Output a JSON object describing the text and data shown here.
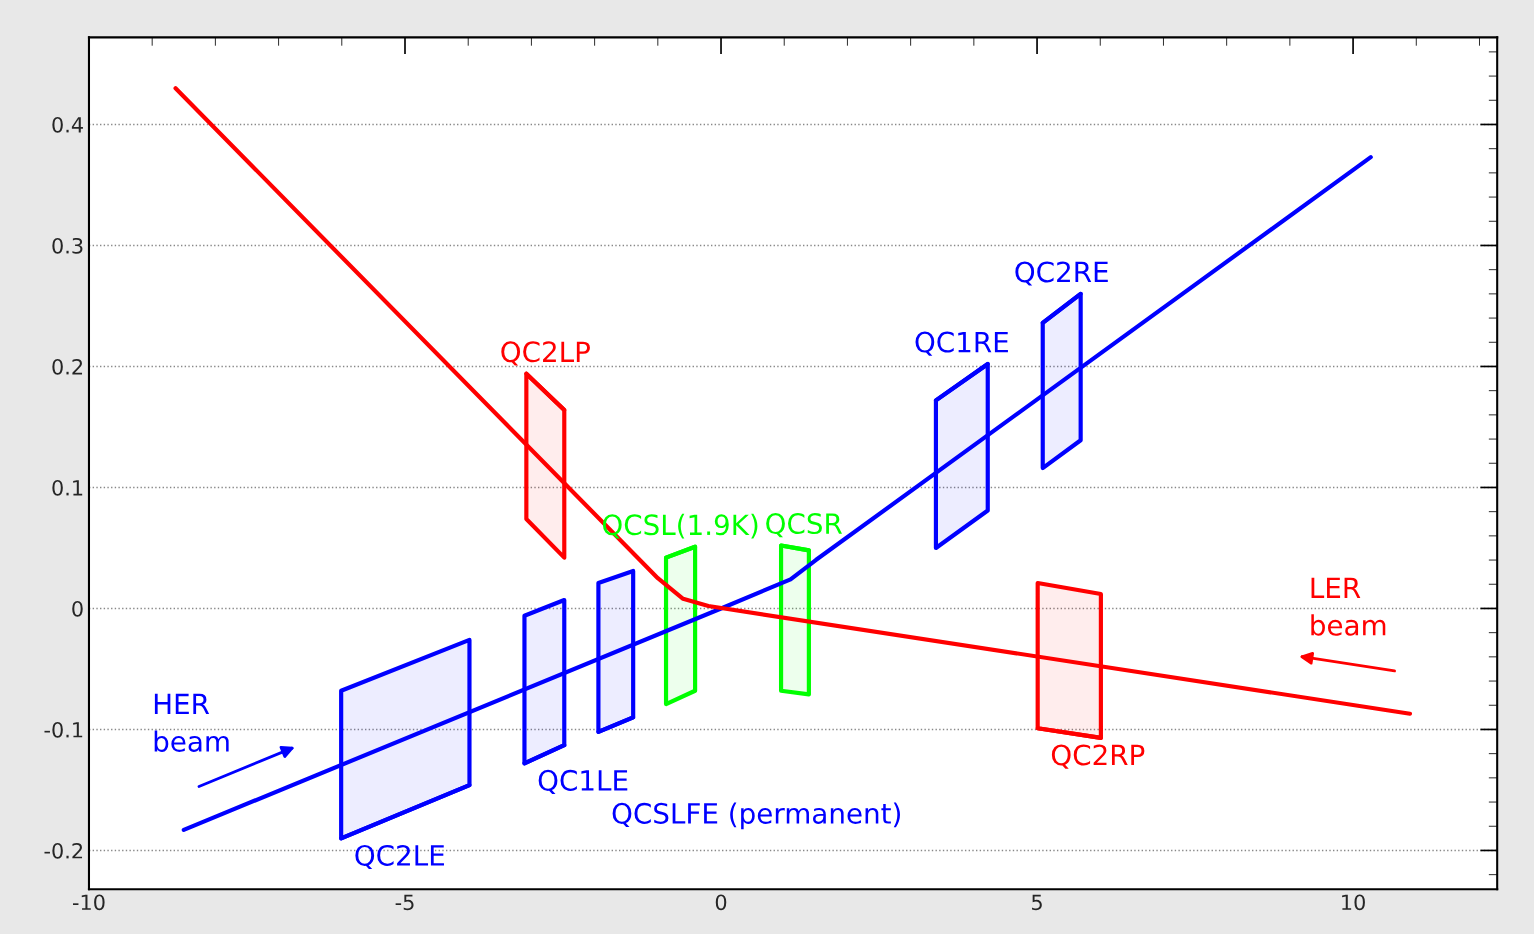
{
  "chart_data": {
    "type": "line",
    "xlim": [
      -10,
      12.28
    ],
    "ylim": [
      -0.232,
      0.472
    ],
    "xticks": [
      -10,
      -5,
      0,
      5,
      10
    ],
    "yticks": [
      -0.2,
      -0.1,
      0,
      0.1,
      0.2,
      0.3,
      0.4
    ],
    "grid": "y",
    "legend": false,
    "marker": "none",
    "line_style": "solid",
    "series": [
      {
        "name": "HER beam",
        "color": "#0000ff",
        "x": [
          -8.5,
          0,
          1.1,
          1.5,
          10.28
        ],
        "values": [
          -0.183,
          0.0,
          0.024,
          0.04,
          0.373
        ]
      },
      {
        "name": "LER beam",
        "color": "#ff0000",
        "x": [
          -8.63,
          -1.0,
          -0.6,
          -0.2,
          10.9
        ],
        "values": [
          0.43,
          0.025,
          0.008,
          0.002,
          -0.087
        ]
      },
      {
        "name": "QC2LE",
        "color": "#0000ff",
        "x": [
          -6.01,
          -3.98
        ],
        "values": [
          -0.19,
          -0.146
        ],
        "upper": [
          -0.068,
          -0.026
        ],
        "lower": [
          -0.19,
          -0.146
        ]
      },
      {
        "name": "QC1LE",
        "color": "#0000ff",
        "x": [
          -3.11,
          -2.48
        ],
        "values": [
          -0.128,
          -0.113
        ],
        "upper": [
          -0.006,
          0.007
        ],
        "lower": [
          -0.128,
          -0.113
        ]
      },
      {
        "name": "QCSLFE (permanent)",
        "color": "#0000ff",
        "x": [
          -1.94,
          -1.39
        ],
        "values": [
          -0.102,
          -0.09
        ],
        "upper": [
          0.021,
          0.031
        ],
        "lower": [
          -0.102,
          -0.09
        ]
      },
      {
        "name": "QCSL(1.9K)",
        "color": "#00ff00",
        "x": [
          -0.87,
          -0.41
        ],
        "values": [
          0.042,
          0.051
        ],
        "upper": [
          0.042,
          0.051
        ],
        "lower": [
          -0.079,
          -0.068
        ]
      },
      {
        "name": "QCSR",
        "color": "#00ff00",
        "x": [
          0.95,
          1.39
        ],
        "values": [
          0.052,
          0.048
        ],
        "upper": [
          0.052,
          0.048
        ],
        "lower": [
          -0.068,
          -0.071
        ]
      },
      {
        "name": "QC1RE",
        "color": "#0000ff",
        "x": [
          3.4,
          4.22
        ],
        "values": [
          0.172,
          0.202
        ],
        "upper": [
          0.172,
          0.202
        ],
        "lower": [
          0.05,
          0.081
        ]
      },
      {
        "name": "QC2RE",
        "color": "#0000ff",
        "x": [
          5.09,
          5.69
        ],
        "values": [
          0.236,
          0.26
        ],
        "upper": [
          0.236,
          0.26
        ],
        "lower": [
          0.116,
          0.139
        ]
      },
      {
        "name": "QC2LP",
        "color": "#ff0000",
        "x": [
          -3.08,
          -2.48
        ],
        "values": [
          0.194,
          0.164
        ],
        "upper": [
          0.194,
          0.164
        ],
        "lower": [
          0.074,
          0.042
        ]
      },
      {
        "name": "QC2RP",
        "color": "#ff0000",
        "x": [
          5.01,
          6.01
        ],
        "values": [
          -0.099,
          -0.107
        ],
        "upper": [
          0.021,
          0.012
        ],
        "lower": [
          -0.099,
          -0.107
        ]
      }
    ]
  }
}
